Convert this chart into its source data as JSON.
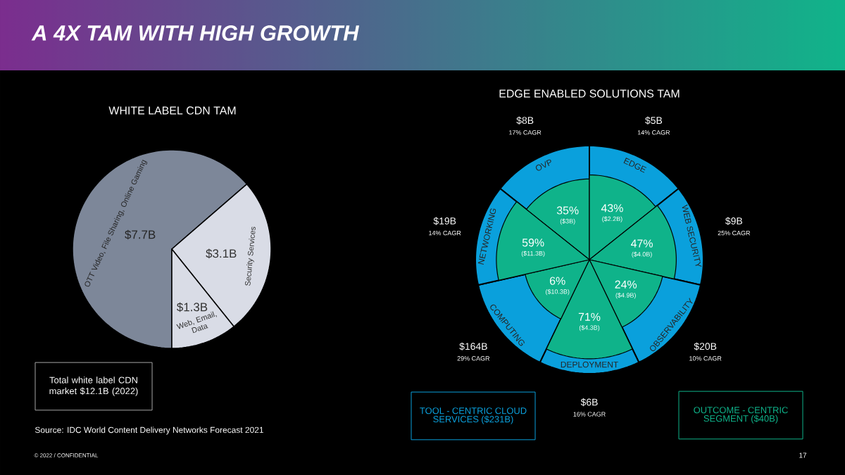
{
  "chart_data": [
    {
      "type": "pie",
      "title": "A 4X TAM WITH HIGH GROWTH",
      "subtitle": "WHITE LABEL CDN TAM",
      "categories": [
        "OTT Video, File Sharing, Online Gaming",
        "Security Services",
        "Web, Email, Data"
      ],
      "values": [
        7.7,
        3.1,
        1.3
      ],
      "value_labels": [
        "$7.7B",
        "$3.1B",
        "$1.3B"
      ],
      "colors": [
        "#7d8799",
        "#d9dce6",
        "#d9dce6"
      ],
      "annotations": [
        "Total white label CDN market $12.1B (2022)",
        "Source:  IDC World Content Delivery Networks Forecast 2021",
        "© 2022 / CONFIDENTIAL",
        "17"
      ]
    },
    {
      "type": "other",
      "title": "EDGE ENABLED SOLUTIONS TAM",
      "categories": [
        "OVP",
        "EDGE",
        "WEB SECURITY",
        "OBSERVABILITY",
        "DEPLOYMENT",
        "COMPUTING",
        "NETWORKING"
      ],
      "series": [
        {
          "color": "#0aa0dc",
          "values": [
            8,
            5,
            9,
            20,
            6,
            164,
            19
          ],
          "value_labels": [
            "$8B",
            "$5B",
            "$9B",
            "$20B",
            "$6B",
            "$164B",
            "$19B"
          ]
        },
        {
          "values": [
            17,
            14,
            25,
            10,
            16,
            29,
            14
          ],
          "value_labels": [
            "17% CAGR",
            "14% CAGR",
            "25% CAGR",
            "10% CAGR",
            "16% CAGR",
            "29% CAGR",
            "14% CAGR"
          ]
        },
        {
          "color": "#0fb38a",
          "values": [
            35,
            43,
            47,
            24,
            71,
            6,
            59
          ],
          "value_labels": [
            "35%",
            "43%",
            "47%",
            "24%",
            "71%",
            "6%",
            "59%"
          ]
        },
        {
          "values": [
            3,
            2.2,
            4.0,
            4.9,
            4.3,
            10.3,
            11.3
          ],
          "value_labels": [
            "($3B)",
            "($2.2B)",
            "($4.0B)",
            "($4.9B)",
            "($4.3B)",
            "($10.3B)",
            "($11.3B)"
          ]
        }
      ],
      "annotations": [
        "TOOL - CENTRIC CLOUD SERVICES ($231B)",
        "OUTCOME - CENTRIC SEGMENT ($40B)"
      ]
    }
  ]
}
